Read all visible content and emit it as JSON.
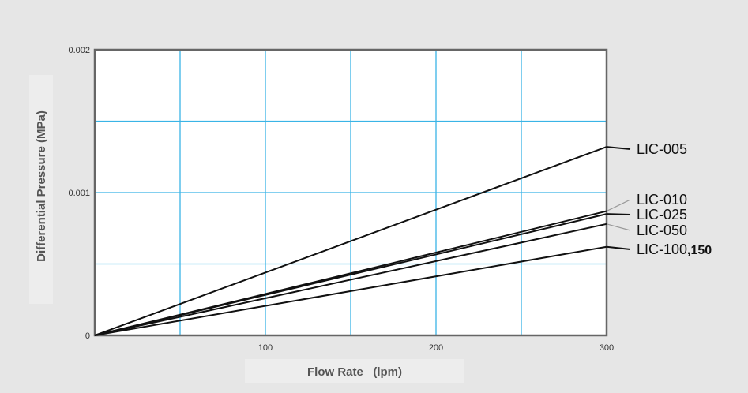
{
  "chart_data": {
    "type": "line",
    "title": "",
    "xlabel": "Flow Rate   (lpm)",
    "ylabel": "Differential Pressure (MPa)",
    "xlim": [
      0,
      300
    ],
    "ylim": [
      0,
      0.002
    ],
    "x_ticks": [
      {
        "value": 100,
        "label": "100"
      },
      {
        "value": 200,
        "label": "200"
      },
      {
        "value": 300,
        "label": "300"
      }
    ],
    "y_ticks": [
      {
        "value": 0,
        "label": "0"
      },
      {
        "value": 0.001,
        "label": "0.001"
      },
      {
        "value": 0.002,
        "label": "0.002"
      }
    ],
    "grid_x": [
      50,
      100,
      150,
      200,
      250
    ],
    "grid_y": [
      0.0005,
      0.001,
      0.0015
    ],
    "grid": true,
    "grid_color": "#3ab4e6",
    "series": [
      {
        "name": "LIC-005",
        "x": [
          0,
          300
        ],
        "y": [
          0,
          0.00132
        ],
        "label_bold_part": ""
      },
      {
        "name": "LIC-010",
        "x": [
          0,
          300
        ],
        "y": [
          0,
          0.00087
        ],
        "label_bold_part": ""
      },
      {
        "name": "LIC-025",
        "x": [
          0,
          300
        ],
        "y": [
          0,
          0.00085
        ],
        "label_bold_part": ""
      },
      {
        "name": "LIC-050",
        "x": [
          0,
          300
        ],
        "y": [
          0,
          0.00078
        ],
        "label_bold_part": ""
      },
      {
        "name": "LIC-100",
        "x": [
          0,
          300
        ],
        "y": [
          0,
          0.00062
        ],
        "label_bold_part": ",150"
      }
    ],
    "colors": {
      "background": "#e6e6e6",
      "plot_background": "#ffffff",
      "frame": "#666666",
      "line": "#111111",
      "leader_light": "#999999",
      "axis_text": "#555555"
    }
  }
}
